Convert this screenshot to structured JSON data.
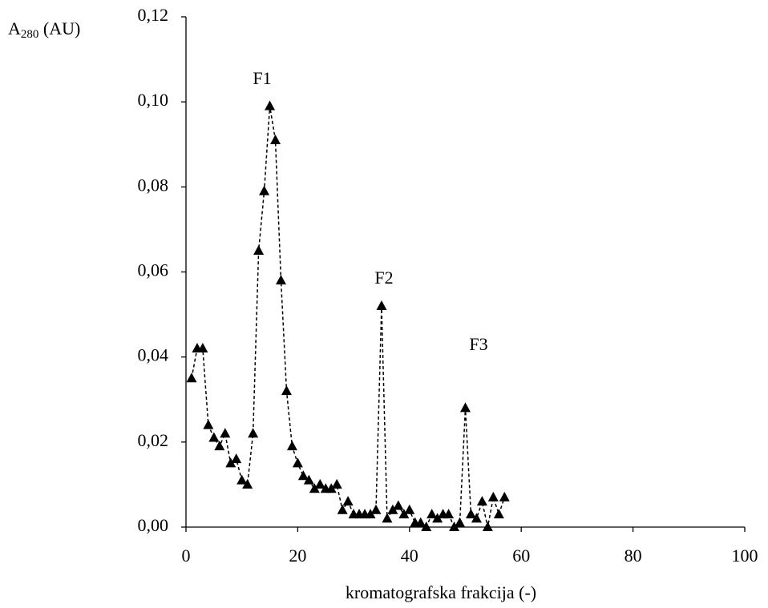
{
  "chart_data": {
    "type": "line",
    "xlabel": "kromatografska frakcija  (-)",
    "ylabel": "A280 (AU)",
    "annotations": [
      "F1",
      "F2",
      "F3"
    ],
    "x": [
      1,
      2,
      3,
      4,
      5,
      6,
      7,
      8,
      9,
      10,
      11,
      12,
      13,
      14,
      15,
      16,
      17,
      18,
      19,
      20,
      21,
      22,
      23,
      24,
      25,
      26,
      27,
      28,
      29,
      30,
      31,
      32,
      33,
      34,
      35,
      36,
      37,
      38,
      39,
      40,
      41,
      42,
      43,
      44,
      45,
      46,
      47,
      48,
      49,
      50,
      51,
      52,
      53,
      54,
      55,
      56,
      57
    ],
    "values": [
      0.035,
      0.042,
      0.042,
      0.024,
      0.021,
      0.019,
      0.022,
      0.015,
      0.016,
      0.011,
      0.01,
      0.022,
      0.065,
      0.079,
      0.099,
      0.091,
      0.058,
      0.032,
      0.019,
      0.015,
      0.012,
      0.011,
      0.009,
      0.01,
      0.009,
      0.009,
      0.01,
      0.004,
      0.006,
      0.003,
      0.003,
      0.003,
      0.003,
      0.004,
      0.052,
      0.002,
      0.004,
      0.005,
      0.003,
      0.004,
      0.001,
      0.001,
      0.0,
      0.003,
      0.002,
      0.003,
      0.003,
      0.0,
      0.001,
      0.028,
      0.003,
      0.002,
      0.006,
      0.0,
      0.007,
      0.003,
      0.007
    ],
    "color": "#000000",
    "line_style": "dashed",
    "marker": "triangle",
    "xlim": [
      0,
      100
    ],
    "xticks": [
      0,
      20,
      40,
      60,
      80,
      100
    ],
    "ylim": [
      0,
      0.12
    ],
    "yticks": [
      {
        "value": 0,
        "label": "0,00"
      },
      {
        "value": 0.02,
        "label": "0,02"
      },
      {
        "value": 0.04,
        "label": "0,04"
      },
      {
        "value": 0.06,
        "label": "0,06"
      },
      {
        "value": 0.08,
        "label": "0,08"
      },
      {
        "value": 0.1,
        "label": "0,10"
      },
      {
        "value": 0.12,
        "label": "0,12"
      }
    ],
    "grid": false
  }
}
